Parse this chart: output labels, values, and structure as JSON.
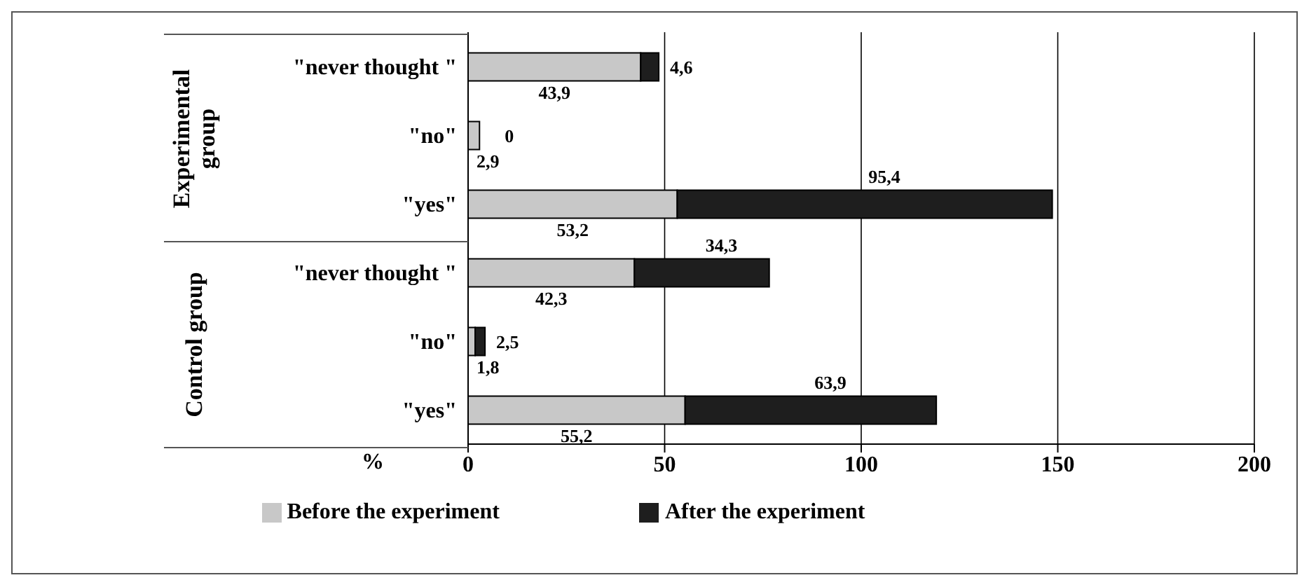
{
  "chart_data": {
    "type": "bar",
    "orientation": "horizontal",
    "stacked": true,
    "categories": [
      "\"never thought \"",
      "\"no\"",
      "\"yes\"",
      "\"never thought \"",
      "\"no\"",
      "\"yes\""
    ],
    "series": [
      {
        "name": "Before the experiment",
        "color": "#c8c8c8",
        "values": [
          43.9,
          2.9,
          53.2,
          42.3,
          1.8,
          55.2
        ],
        "value_labels": [
          "43,9",
          "2,9",
          "53,2",
          "42,3",
          "1,8",
          "55,2"
        ]
      },
      {
        "name": "After the experiment",
        "color": "#1e1e1e",
        "values": [
          4.6,
          0,
          95.4,
          34.3,
          2.5,
          63.9
        ],
        "value_labels": [
          "4,6",
          "0",
          "95,4",
          "34,3",
          "2,5",
          "63,9"
        ]
      }
    ],
    "xlabel": "%",
    "xlim": [
      0,
      200
    ],
    "xticks": [
      0,
      50,
      100,
      150,
      200
    ],
    "grid": "x",
    "legend": "bottom",
    "annotations": [
      "Experimental group",
      "Control group"
    ]
  }
}
